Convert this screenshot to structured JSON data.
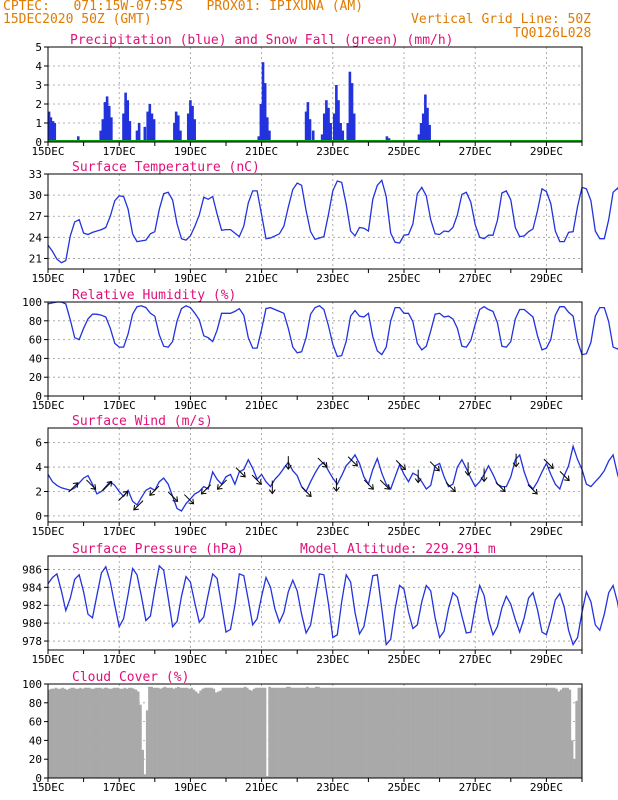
{
  "header": {
    "line1_left": "CPTEC:   071:15W-07:57S   PROX01: IPIXUNA (AM)",
    "line2_left": "15DEC2020 50Z (GMT)",
    "line2_right": "Vertical Grid Line: 50Z",
    "line3_right": "TQ0126L028"
  },
  "colors": {
    "header": "#e07b00",
    "title": "#e0107a",
    "line": "#2233dd",
    "snow": "#00a000",
    "cloud": "#a9a9a9"
  },
  "x_axis": {
    "labels": [
      "15DEC",
      "17DEC",
      "19DEC",
      "21DEC",
      "23DEC",
      "25DEC",
      "27DEC",
      "29DEC"
    ],
    "label_days": [
      0,
      2,
      4,
      6,
      8,
      10,
      12,
      14
    ],
    "range_days": [
      0,
      15
    ]
  },
  "chart_data": [
    {
      "type": "bar",
      "title": "Precipitation (blue) and Snow Fall (green) (mm/h)",
      "ylim": [
        0,
        5
      ],
      "yticks": [
        "0",
        "1",
        "2",
        "3",
        "4",
        "5"
      ],
      "precip_bars": [
        [
          0.03,
          1.6
        ],
        [
          0.08,
          1.3
        ],
        [
          0.14,
          1.1
        ],
        [
          0.19,
          1.0
        ],
        [
          0.85,
          0.3
        ],
        [
          1.48,
          0.6
        ],
        [
          1.54,
          1.2
        ],
        [
          1.6,
          2.1
        ],
        [
          1.66,
          2.4
        ],
        [
          1.72,
          1.9
        ],
        [
          1.78,
          1.3
        ],
        [
          2.12,
          1.5
        ],
        [
          2.18,
          2.6
        ],
        [
          2.24,
          2.2
        ],
        [
          2.3,
          1.1
        ],
        [
          2.5,
          0.6
        ],
        [
          2.56,
          1.0
        ],
        [
          2.72,
          0.8
        ],
        [
          2.8,
          1.6
        ],
        [
          2.86,
          2.0
        ],
        [
          2.92,
          1.5
        ],
        [
          2.98,
          1.2
        ],
        [
          3.55,
          1.0
        ],
        [
          3.6,
          1.6
        ],
        [
          3.66,
          1.4
        ],
        [
          3.72,
          0.6
        ],
        [
          3.94,
          1.5
        ],
        [
          4.0,
          2.2
        ],
        [
          4.06,
          1.9
        ],
        [
          4.12,
          1.2
        ],
        [
          5.92,
          0.3
        ],
        [
          5.98,
          2.0
        ],
        [
          6.04,
          4.2
        ],
        [
          6.1,
          3.1
        ],
        [
          6.16,
          1.3
        ],
        [
          6.22,
          0.6
        ],
        [
          7.25,
          1.6
        ],
        [
          7.3,
          2.1
        ],
        [
          7.36,
          1.2
        ],
        [
          7.45,
          0.6
        ],
        [
          7.7,
          0.4
        ],
        [
          7.76,
          1.5
        ],
        [
          7.82,
          2.2
        ],
        [
          7.88,
          1.8
        ],
        [
          7.94,
          1.0
        ],
        [
          8.04,
          1.5
        ],
        [
          8.1,
          3.0
        ],
        [
          8.16,
          2.2
        ],
        [
          8.22,
          1.0
        ],
        [
          8.28,
          0.6
        ],
        [
          8.42,
          1.0
        ],
        [
          8.48,
          3.7
        ],
        [
          8.54,
          3.1
        ],
        [
          8.6,
          1.5
        ],
        [
          9.52,
          0.3
        ],
        [
          9.58,
          0.2
        ],
        [
          10.42,
          0.4
        ],
        [
          10.48,
          1.0
        ],
        [
          10.54,
          1.5
        ],
        [
          10.6,
          2.5
        ],
        [
          10.66,
          1.8
        ],
        [
          10.72,
          0.9
        ]
      ],
      "snow_mm_h": 0
    },
    {
      "type": "line",
      "title": "Surface Temperature (nC)",
      "ylim": [
        19.5,
        33
      ],
      "yticks": [
        "21",
        "24",
        "27",
        "30",
        "33"
      ],
      "x_step_days": 0.125,
      "values": [
        22.9,
        22.0,
        20.9,
        20.4,
        20.7,
        24.2,
        26.2,
        26.5,
        24.6,
        24.4,
        24.7,
        24.9,
        25.1,
        25.4,
        27.0,
        29.2,
        29.9,
        29.8,
        28.0,
        24.5,
        23.4,
        23.5,
        23.6,
        24.5,
        24.8,
        28.0,
        30.2,
        30.4,
        29.3,
        25.9,
        23.8,
        23.6,
        24.2,
        25.6,
        27.2,
        29.7,
        29.4,
        29.8,
        27.3,
        25.0,
        25.1,
        25.1,
        24.6,
        24.1,
        25.6,
        28.9,
        30.6,
        30.6,
        27.2,
        23.8,
        23.9,
        24.2,
        24.5,
        25.6,
        28.3,
        30.8,
        31.7,
        31.4,
        27.8,
        24.8,
        23.7,
        23.9,
        24.1,
        27.2,
        30.6,
        32.0,
        31.8,
        28.7,
        24.9,
        24.2,
        25.4,
        25.3,
        24.9,
        29.4,
        31.4,
        32.1,
        29.8,
        24.6,
        23.3,
        23.2,
        24.3,
        24.4,
        25.9,
        30.2,
        31.1,
        29.9,
        26.5,
        24.5,
        24.4,
        24.9,
        24.8,
        25.4,
        27.2,
        30.1,
        30.4,
        29.0,
        25.8,
        24.0,
        23.8,
        24.3,
        24.3,
        26.4,
        30.3,
        30.6,
        29.3,
        25.4,
        24.1,
        24.2,
        24.8,
        25.2,
        27.8,
        30.9,
        30.5,
        28.8,
        24.9,
        23.4,
        23.4,
        24.7,
        24.8,
        28.4,
        31.1,
        30.9,
        29.2,
        24.9,
        23.8,
        23.8,
        26.5,
        30.4,
        31.0,
        29.6,
        26.2
      ]
    },
    {
      "type": "line",
      "title": "Relative Humidity (%)",
      "ylim": [
        0,
        100
      ],
      "yticks": [
        "0",
        "20",
        "40",
        "60",
        "80",
        "100"
      ],
      "x_step_days": 0.125,
      "values": [
        98,
        99,
        100,
        100,
        98,
        81,
        62,
        60,
        72,
        82,
        87,
        87,
        86,
        84,
        72,
        56,
        52,
        52,
        66,
        87,
        95,
        96,
        94,
        88,
        85,
        65,
        53,
        52,
        58,
        80,
        93,
        96,
        94,
        88,
        81,
        64,
        62,
        58,
        70,
        88,
        88,
        88,
        90,
        93,
        86,
        62,
        51,
        51,
        71,
        93,
        94,
        92,
        90,
        88,
        72,
        52,
        46,
        47,
        62,
        87,
        94,
        96,
        92,
        75,
        55,
        42,
        43,
        58,
        85,
        91,
        85,
        84,
        88,
        63,
        48,
        44,
        52,
        80,
        94,
        94,
        88,
        88,
        79,
        56,
        49,
        53,
        69,
        87,
        88,
        84,
        85,
        82,
        72,
        53,
        52,
        59,
        76,
        92,
        95,
        92,
        90,
        78,
        53,
        52,
        58,
        82,
        92,
        92,
        88,
        84,
        64,
        49,
        51,
        60,
        86,
        95,
        95,
        89,
        85,
        58,
        44,
        45,
        57,
        85,
        94,
        94,
        79,
        52,
        50,
        55,
        77
      ]
    },
    {
      "type": "line",
      "title": "Surface Wind (m/s)",
      "ylim": [
        -0.5,
        7.2
      ],
      "yticks": [
        "0",
        "2",
        "4",
        "6"
      ],
      "x_step_days": 0.125,
      "values": [
        3.4,
        2.8,
        2.5,
        2.3,
        2.2,
        2.1,
        2.3,
        2.7,
        3.1,
        3.3,
        2.6,
        1.8,
        2.0,
        2.4,
        2.8,
        2.5,
        2.0,
        1.6,
        2.1,
        1.2,
        0.9,
        1.5,
        2.1,
        2.3,
        2.1,
        2.8,
        3.1,
        2.6,
        1.6,
        0.6,
        0.4,
        1.0,
        1.4,
        1.8,
        2.0,
        2.4,
        2.2,
        3.6,
        3.0,
        2.6,
        3.2,
        3.4,
        2.6,
        3.6,
        3.8,
        4.6,
        3.9,
        3.0,
        3.4,
        2.8,
        2.4,
        3.0,
        3.4,
        3.9,
        4.4,
        3.7,
        3.3,
        2.4,
        2.0,
        2.8,
        3.5,
        4.1,
        4.4,
        3.7,
        3.1,
        2.6,
        3.3,
        4.1,
        4.5,
        5.0,
        4.3,
        3.2,
        2.6,
        3.8,
        4.7,
        3.5,
        2.6,
        2.2,
        3.2,
        4.2,
        3.4,
        2.8,
        3.5,
        3.3,
        2.8,
        2.2,
        2.5,
        4.1,
        4.3,
        3.2,
        2.4,
        2.6,
        4.0,
        4.6,
        3.9,
        3.1,
        2.4,
        2.8,
        3.4,
        4.1,
        3.4,
        2.6,
        2.4,
        2.4,
        3.2,
        4.6,
        5.0,
        3.6,
        2.6,
        2.2,
        2.8,
        3.6,
        4.3,
        3.4,
        2.6,
        2.2,
        3.3,
        4.1,
        5.7,
        4.6,
        3.8,
        2.6,
        2.4,
        2.8,
        3.2,
        3.7,
        4.5,
        5.0,
        3.4,
        2.2,
        1.9,
        2.4,
        2.8,
        3.4,
        4.5,
        5.7,
        4.6,
        3.6,
        2.8,
        2.3,
        3.2,
        3.9,
        4.4,
        3.6,
        2.8,
        2.4,
        2.6,
        2.9,
        3.2,
        3.8,
        4.6,
        4.1,
        3.3,
        2.8,
        2.3,
        2.9,
        3.9,
        4.6,
        5.6,
        4.6,
        3.1,
        2.4,
        2.4,
        3.0,
        3.4,
        3.1,
        2.9,
        3.6,
        4.4,
        5.8,
        6.4,
        4.9,
        3.4,
        2.4,
        2.2,
        2.8,
        3.4,
        4.3,
        4.8,
        4.0,
        2.8,
        2.2,
        2.6,
        3.4,
        4.3,
        5.1,
        6.3,
        5.2,
        3.6,
        2.6,
        2.4,
        2.8,
        3.4,
        3.8,
        4.3,
        3.6,
        2.8,
        2.4,
        2.8,
        3.4,
        3.6,
        3.8,
        3.4,
        2.6,
        2.4,
        2.9,
        3.4,
        3.8,
        4.0,
        6.8,
        5.6,
        4.2,
        3.2,
        2.4,
        2.6,
        3.1,
        3.6,
        4.0,
        3.5,
        2.6,
        2.2,
        2.6,
        3.3,
        3.8,
        4.6,
        4.0,
        2.6,
        1.8,
        1.6,
        2.8,
        3.4,
        3.2,
        3.6,
        5.3,
        6.4,
        5.4,
        3.8,
        2.8,
        2.6,
        2.6,
        2.8,
        3.2,
        3.8,
        4.0,
        3.2,
        3.2,
        3.0,
        2.5,
        3.4,
        4.3,
        4.2,
        3.0,
        2.2,
        1.8,
        1.4,
        1.2,
        0.3
      ],
      "arrow_positions_days": [
        0.7,
        1.2,
        1.65,
        2.1,
        2.55,
        3.0,
        3.5,
        3.95,
        4.45,
        4.9,
        5.4,
        5.85,
        6.3,
        6.75,
        7.25,
        7.7,
        8.1,
        8.55,
        9.0,
        9.45,
        9.9,
        10.4,
        10.85,
        11.3,
        11.8,
        12.25,
        12.7,
        13.15,
        13.6,
        14.05,
        14.5
      ],
      "arrow_directions_deg": [
        225,
        315,
        225,
        225,
        45,
        45,
        315,
        315,
        45,
        45,
        315,
        315,
        0,
        0,
        315,
        315,
        0,
        315,
        315,
        315,
        315,
        0,
        315,
        315,
        0,
        0,
        315,
        0,
        315,
        315,
        315
      ]
    },
    {
      "type": "line",
      "title": "Surface Pressure (hPa)",
      "annotation": "Model Altitude: 229.291  m",
      "ylim": [
        977.0,
        987.5
      ],
      "yticks": [
        "978",
        "980",
        "982",
        "984",
        "986"
      ],
      "x_step_days": 0.125,
      "values": [
        984.4,
        985.1,
        985.5,
        983.6,
        981.4,
        982.8,
        984.9,
        985.4,
        983.5,
        981.0,
        980.6,
        983.1,
        985.6,
        986.3,
        984.6,
        982.0,
        979.6,
        980.5,
        983.2,
        986.1,
        985.4,
        983.0,
        980.3,
        980.8,
        983.7,
        986.4,
        985.9,
        982.8,
        979.6,
        980.2,
        983.0,
        985.2,
        984.6,
        982.2,
        980.1,
        980.7,
        983.2,
        985.5,
        985.0,
        982.0,
        979.0,
        979.3,
        982.0,
        985.5,
        985.3,
        982.6,
        979.8,
        980.5,
        983.0,
        985.1,
        984.0,
        981.6,
        980.1,
        981.2,
        983.5,
        984.8,
        983.6,
        981.0,
        978.9,
        979.8,
        982.7,
        985.5,
        985.4,
        982.2,
        978.4,
        978.7,
        982.4,
        985.4,
        984.6,
        981.2,
        978.8,
        979.6,
        982.4,
        985.3,
        985.4,
        981.6,
        977.6,
        978.2,
        981.6,
        984.2,
        983.8,
        981.2,
        979.4,
        979.8,
        982.4,
        984.2,
        983.6,
        980.6,
        978.4,
        979.1,
        981.6,
        983.4,
        982.9,
        980.8,
        978.9,
        979.0,
        981.8,
        984.2,
        983.1,
        980.4,
        978.7,
        979.6,
        981.7,
        983.0,
        982.1,
        980.4,
        979.0,
        980.6,
        982.8,
        983.4,
        981.5,
        979.0,
        978.7,
        980.4,
        982.6,
        983.3,
        981.8,
        979.2,
        977.6,
        978.4,
        981.2,
        983.5,
        982.4,
        979.8,
        979.2,
        981.0,
        983.4,
        984.2,
        982.3,
        979.4,
        978.0,
        978.6,
        981.2,
        983.4,
        983.8,
        981.6,
        979.4,
        979.3,
        982.0,
        985.6,
        986.4,
        983.3,
        979.2,
        976.6,
        977.6,
        980.6
      ]
    },
    {
      "type": "area",
      "title": "Cloud Cover (%)",
      "ylim": [
        0,
        100
      ],
      "yticks": [
        "0",
        "20",
        "40",
        "60",
        "80",
        "100"
      ],
      "x_step_days": 0.0625,
      "values": [
        94,
        95,
        95,
        96,
        95,
        95,
        96,
        95,
        94,
        95,
        96,
        96,
        95,
        95,
        96,
        95,
        96,
        96,
        96,
        95,
        95,
        96,
        96,
        96,
        95,
        96,
        96,
        95,
        95,
        96,
        96,
        96,
        95,
        95,
        96,
        95,
        96,
        96,
        95,
        94,
        92,
        78,
        30,
        4,
        72,
        97,
        97,
        96,
        96,
        96,
        95,
        96,
        97,
        96,
        96,
        96,
        95,
        96,
        97,
        96,
        96,
        96,
        96,
        95,
        96,
        94,
        92,
        90,
        93,
        95,
        96,
        96,
        96,
        96,
        95,
        91,
        92,
        93,
        96,
        96,
        96,
        96,
        96,
        96,
        96,
        96,
        96,
        96,
        97,
        96,
        94,
        93,
        95,
        96,
        96,
        96,
        96,
        96,
        2,
        97,
        96,
        96,
        96,
        96,
        96,
        96,
        96,
        97,
        97,
        96,
        96,
        96,
        96,
        96,
        96,
        96,
        97,
        96,
        96,
        96,
        97,
        97,
        96,
        96,
        96,
        96,
        96,
        96,
        96,
        96,
        96,
        96,
        96,
        96,
        96,
        96,
        96,
        96,
        96,
        96,
        96,
        96,
        96,
        96,
        96,
        96,
        96,
        96,
        96,
        96,
        96,
        96,
        96,
        96,
        96,
        96,
        96,
        96,
        96,
        96,
        96,
        96,
        96,
        96,
        96,
        96,
        96,
        96,
        96,
        96,
        96,
        96,
        96,
        96,
        96,
        96,
        96,
        96,
        96,
        96,
        96,
        96,
        96,
        96,
        96,
        96,
        96,
        96,
        96,
        96,
        96,
        96,
        96,
        96,
        96,
        96,
        96,
        96,
        96,
        96,
        96,
        96,
        96,
        96,
        96,
        96,
        96,
        96,
        96,
        96,
        96,
        96,
        96,
        96,
        96,
        96,
        96,
        96,
        96,
        96,
        96,
        96,
        96,
        96,
        96,
        96,
        96,
        96,
        95,
        92,
        94,
        96,
        96,
        96,
        94,
        40,
        20,
        82,
        96,
        96
      ]
    }
  ]
}
